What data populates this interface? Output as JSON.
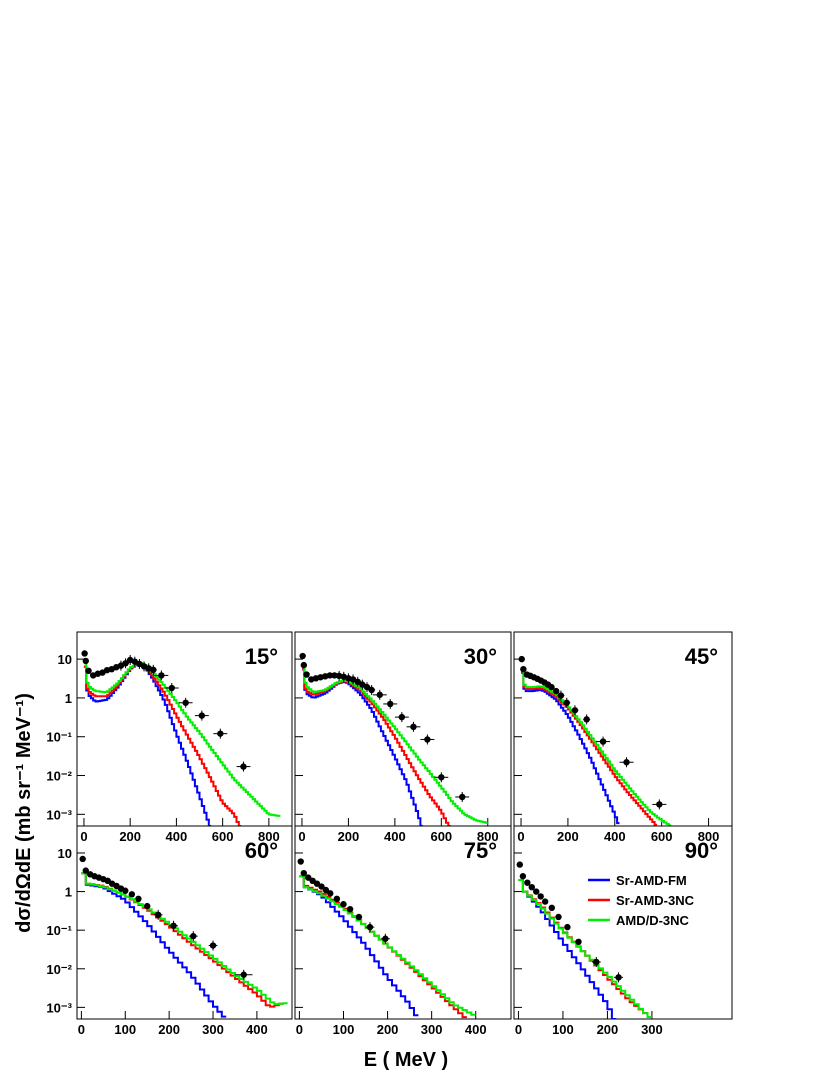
{
  "figure": {
    "ylabel": "dσ/dΩdE (mb sr⁻¹ MeV⁻¹)",
    "xlabel": "E ( MeV )"
  },
  "legend": [
    {
      "name": "Sr-AMD-FM",
      "color": "#0000ff"
    },
    {
      "name": "Sr-AMD-3NC",
      "color": "#ff0000"
    },
    {
      "name": "AMD/D-3NC",
      "color": "#00ee00"
    }
  ],
  "chart_data": [
    {
      "type": "line",
      "title": "15°",
      "xlim": [
        -30,
        900
      ],
      "ylim": [
        0.0005,
        50
      ],
      "yscale": "log",
      "xticks": [
        0,
        200,
        400,
        600,
        800
      ],
      "yticks": [
        "10⁻³",
        "10⁻²",
        "10⁻¹",
        "1",
        "10"
      ],
      "experiment": [
        {
          "x": 3,
          "y": 14
        },
        {
          "x": 8,
          "y": 9
        },
        {
          "x": 20,
          "y": 5
        },
        {
          "x": 40,
          "y": 3.8
        },
        {
          "x": 60,
          "y": 4.2
        },
        {
          "x": 80,
          "y": 4.5
        },
        {
          "x": 100,
          "y": 5.2
        },
        {
          "x": 120,
          "y": 5.5
        },
        {
          "x": 140,
          "y": 6.2
        },
        {
          "x": 160,
          "y": 6.8
        },
        {
          "x": 180,
          "y": 7.8
        },
        {
          "x": 200,
          "y": 9.5
        },
        {
          "x": 220,
          "y": 8.6
        },
        {
          "x": 240,
          "y": 7.5
        },
        {
          "x": 260,
          "y": 6.5
        },
        {
          "x": 280,
          "y": 5.8
        },
        {
          "x": 300,
          "y": 5.3
        },
        {
          "x": 335,
          "y": 3.8
        },
        {
          "x": 380,
          "y": 1.8
        },
        {
          "x": 440,
          "y": 0.75
        },
        {
          "x": 510,
          "y": 0.35
        },
        {
          "x": 590,
          "y": 0.12
        },
        {
          "x": 690,
          "y": 0.017
        }
      ],
      "series": [
        {
          "name": "Sr-AMD-FM",
          "x": [
            0,
            10,
            20,
            50,
            100,
            150,
            200,
            240,
            260,
            300,
            350,
            400,
            450,
            500,
            550
          ],
          "y": [
            20,
            2,
            1.2,
            0.8,
            0.9,
            2,
            5.5,
            8,
            7,
            3,
            0.8,
            0.12,
            0.02,
            0.003,
            0.0004
          ]
        },
        {
          "name": "Sr-AMD-3NC",
          "x": [
            0,
            10,
            20,
            50,
            100,
            150,
            200,
            240,
            260,
            300,
            350,
            400,
            450,
            500,
            550,
            600,
            650,
            680
          ],
          "y": [
            20,
            2,
            1.5,
            1.1,
            1.1,
            2.2,
            5.8,
            8,
            7.2,
            3.5,
            1.3,
            0.35,
            0.1,
            0.03,
            0.008,
            0.002,
            0.001,
            0.0004
          ]
        },
        {
          "name": "AMD/D-3NC",
          "x": [
            0,
            10,
            20,
            50,
            100,
            150,
            200,
            240,
            260,
            300,
            350,
            400,
            450,
            500,
            550,
            600,
            650,
            700,
            750,
            800,
            850
          ],
          "y": [
            20,
            3,
            2,
            1.5,
            1.4,
            2.5,
            6,
            8,
            7.5,
            4.5,
            2,
            0.8,
            0.3,
            0.13,
            0.05,
            0.02,
            0.008,
            0.004,
            0.002,
            0.001,
            0.0009
          ]
        }
      ]
    },
    {
      "type": "line",
      "title": "30°",
      "xlim": [
        -30,
        900
      ],
      "ylim": [
        0.0005,
        50
      ],
      "yscale": "log",
      "xticks": [
        0,
        200,
        400,
        600,
        800
      ],
      "yticks": [],
      "experiment": [
        {
          "x": 3,
          "y": 12
        },
        {
          "x": 8,
          "y": 7
        },
        {
          "x": 20,
          "y": 4
        },
        {
          "x": 40,
          "y": 3
        },
        {
          "x": 60,
          "y": 3.2
        },
        {
          "x": 80,
          "y": 3.4
        },
        {
          "x": 100,
          "y": 3.6
        },
        {
          "x": 120,
          "y": 3.8
        },
        {
          "x": 140,
          "y": 3.8
        },
        {
          "x": 160,
          "y": 3.7
        },
        {
          "x": 180,
          "y": 3.5
        },
        {
          "x": 200,
          "y": 3.2
        },
        {
          "x": 220,
          "y": 3
        },
        {
          "x": 240,
          "y": 2.6
        },
        {
          "x": 260,
          "y": 2.2
        },
        {
          "x": 280,
          "y": 1.9
        },
        {
          "x": 300,
          "y": 1.6
        },
        {
          "x": 335,
          "y": 1.2
        },
        {
          "x": 380,
          "y": 0.7
        },
        {
          "x": 430,
          "y": 0.32
        },
        {
          "x": 480,
          "y": 0.18
        },
        {
          "x": 540,
          "y": 0.085
        },
        {
          "x": 600,
          "y": 0.009
        },
        {
          "x": 690,
          "y": 0.0028
        }
      ],
      "series": [
        {
          "name": "Sr-AMD-FM",
          "x": [
            0,
            10,
            20,
            50,
            100,
            150,
            180,
            200,
            250,
            300,
            350,
            400,
            450,
            500,
            520
          ],
          "y": [
            15,
            2,
            1.3,
            1,
            1.3,
            2.3,
            2.6,
            2.4,
            1.3,
            0.5,
            0.12,
            0.03,
            0.007,
            0.001,
            0.0004
          ]
        },
        {
          "name": "Sr-AMD-3NC",
          "x": [
            0,
            10,
            20,
            50,
            100,
            150,
            180,
            200,
            250,
            300,
            350,
            400,
            450,
            500,
            550,
            600,
            640
          ],
          "y": [
            15,
            2,
            1.5,
            1.2,
            1.5,
            2.4,
            2.7,
            2.6,
            1.6,
            0.75,
            0.3,
            0.1,
            0.03,
            0.009,
            0.003,
            0.0012,
            0.0004
          ]
        },
        {
          "name": "AMD/D-3NC",
          "x": [
            0,
            10,
            20,
            50,
            100,
            150,
            180,
            200,
            250,
            300,
            350,
            400,
            450,
            500,
            550,
            600,
            650,
            700,
            750,
            800
          ],
          "y": [
            15,
            3,
            2,
            1.4,
            1.6,
            2.5,
            2.8,
            2.7,
            1.8,
            0.9,
            0.4,
            0.17,
            0.07,
            0.028,
            0.012,
            0.005,
            0.002,
            0.001,
            0.0007,
            0.0006
          ]
        }
      ]
    },
    {
      "type": "line",
      "title": "45°",
      "xlim": [
        -30,
        900
      ],
      "ylim": [
        0.0005,
        50
      ],
      "yscale": "log",
      "xticks": [
        0,
        200,
        400,
        600,
        800
      ],
      "yticks": [],
      "experiment": [
        {
          "x": 3,
          "y": 10
        },
        {
          "x": 10,
          "y": 5.5
        },
        {
          "x": 25,
          "y": 4
        },
        {
          "x": 40,
          "y": 3.7
        },
        {
          "x": 55,
          "y": 3.4
        },
        {
          "x": 70,
          "y": 3.1
        },
        {
          "x": 85,
          "y": 2.8
        },
        {
          "x": 100,
          "y": 2.5
        },
        {
          "x": 115,
          "y": 2.2
        },
        {
          "x": 130,
          "y": 1.9
        },
        {
          "x": 150,
          "y": 1.5
        },
        {
          "x": 170,
          "y": 1.15
        },
        {
          "x": 195,
          "y": 0.75
        },
        {
          "x": 230,
          "y": 0.48
        },
        {
          "x": 280,
          "y": 0.28
        },
        {
          "x": 350,
          "y": 0.075
        },
        {
          "x": 450,
          "y": 0.022
        },
        {
          "x": 590,
          "y": 0.0018
        }
      ],
      "series": [
        {
          "name": "Sr-AMD-FM",
          "x": [
            0,
            10,
            20,
            50,
            80,
            100,
            150,
            200,
            250,
            300,
            350,
            400,
            420
          ],
          "y": [
            10,
            2,
            1.5,
            1.5,
            1.6,
            1.5,
            0.9,
            0.35,
            0.1,
            0.025,
            0.005,
            0.001,
            0.0005
          ]
        },
        {
          "name": "Sr-AMD-3NC",
          "x": [
            0,
            10,
            20,
            50,
            80,
            100,
            150,
            200,
            250,
            300,
            350,
            400,
            450,
            500,
            550,
            580
          ],
          "y": [
            10,
            2.2,
            1.7,
            1.7,
            1.8,
            1.7,
            1.1,
            0.55,
            0.22,
            0.08,
            0.028,
            0.01,
            0.004,
            0.0018,
            0.0008,
            0.0005
          ]
        },
        {
          "name": "AMD/D-3NC",
          "x": [
            0,
            10,
            20,
            50,
            80,
            100,
            150,
            200,
            250,
            300,
            350,
            400,
            450,
            500,
            550,
            600,
            640
          ],
          "y": [
            10,
            2.5,
            1.9,
            1.9,
            2,
            1.9,
            1.25,
            0.62,
            0.26,
            0.1,
            0.038,
            0.014,
            0.006,
            0.0026,
            0.0012,
            0.0007,
            0.0005
          ]
        }
      ]
    },
    {
      "type": "line",
      "title": "60°",
      "xlim": [
        -10,
        480
      ],
      "ylim": [
        0.0005,
        50
      ],
      "yscale": "log",
      "xticks": [
        0,
        100,
        200,
        300,
        400
      ],
      "yticks": [
        "10⁻³",
        "10⁻²",
        "10⁻¹",
        "1",
        "10"
      ],
      "experiment": [
        {
          "x": 3,
          "y": 7
        },
        {
          "x": 10,
          "y": 3.5
        },
        {
          "x": 20,
          "y": 2.8
        },
        {
          "x": 30,
          "y": 2.5
        },
        {
          "x": 40,
          "y": 2.3
        },
        {
          "x": 50,
          "y": 2.1
        },
        {
          "x": 60,
          "y": 1.9
        },
        {
          "x": 70,
          "y": 1.6
        },
        {
          "x": 80,
          "y": 1.4
        },
        {
          "x": 90,
          "y": 1.2
        },
        {
          "x": 100,
          "y": 1.05
        },
        {
          "x": 115,
          "y": 0.85
        },
        {
          "x": 130,
          "y": 0.65
        },
        {
          "x": 150,
          "y": 0.42
        },
        {
          "x": 175,
          "y": 0.25
        },
        {
          "x": 210,
          "y": 0.13
        },
        {
          "x": 255,
          "y": 0.07
        },
        {
          "x": 300,
          "y": 0.04
        },
        {
          "x": 370,
          "y": 0.007
        }
      ],
      "series": [
        {
          "name": "Sr-AMD-FM",
          "x": [
            0,
            5,
            15,
            50,
            100,
            150,
            200,
            250,
            300,
            330
          ],
          "y": [
            6,
            3,
            1.5,
            1.3,
            0.6,
            0.15,
            0.03,
            0.007,
            0.0012,
            0.0005
          ]
        },
        {
          "name": "Sr-AMD-3NC",
          "x": [
            0,
            5,
            15,
            50,
            100,
            150,
            200,
            250,
            300,
            350,
            400,
            430,
            460
          ],
          "y": [
            6,
            3,
            1.6,
            1.4,
            0.8,
            0.35,
            0.13,
            0.045,
            0.017,
            0.006,
            0.0022,
            0.001,
            0.0013
          ]
        },
        {
          "name": "AMD/D-3NC",
          "x": [
            0,
            5,
            15,
            50,
            100,
            150,
            200,
            250,
            300,
            350,
            400,
            440,
            470
          ],
          "y": [
            6,
            3,
            1.6,
            1.35,
            0.8,
            0.38,
            0.15,
            0.055,
            0.02,
            0.007,
            0.003,
            0.0012,
            0.0013
          ]
        }
      ]
    },
    {
      "type": "line",
      "title": "75°",
      "xlim": [
        -10,
        480
      ],
      "ylim": [
        0.0005,
        50
      ],
      "yscale": "log",
      "xticks": [
        0,
        100,
        200,
        300,
        400
      ],
      "yticks": [],
      "experiment": [
        {
          "x": 3,
          "y": 6
        },
        {
          "x": 10,
          "y": 3
        },
        {
          "x": 20,
          "y": 2.3
        },
        {
          "x": 30,
          "y": 1.9
        },
        {
          "x": 40,
          "y": 1.6
        },
        {
          "x": 50,
          "y": 1.35
        },
        {
          "x": 60,
          "y": 1.1
        },
        {
          "x": 70,
          "y": 0.9
        },
        {
          "x": 85,
          "y": 0.65
        },
        {
          "x": 100,
          "y": 0.47
        },
        {
          "x": 115,
          "y": 0.35
        },
        {
          "x": 135,
          "y": 0.22
        },
        {
          "x": 160,
          "y": 0.12
        },
        {
          "x": 195,
          "y": 0.06
        }
      ],
      "series": [
        {
          "name": "Sr-AMD-FM",
          "x": [
            0,
            5,
            15,
            50,
            100,
            150,
            200,
            250,
            270
          ],
          "y": [
            5,
            2.5,
            1.3,
            0.8,
            0.2,
            0.04,
            0.006,
            0.0012,
            0.0005
          ]
        },
        {
          "name": "Sr-AMD-3NC",
          "x": [
            0,
            5,
            15,
            50,
            100,
            150,
            200,
            250,
            300,
            350,
            380
          ],
          "y": [
            5,
            2.5,
            1.4,
            0.95,
            0.4,
            0.13,
            0.04,
            0.012,
            0.0035,
            0.001,
            0.0005
          ]
        },
        {
          "name": "AMD/D-3NC",
          "x": [
            0,
            5,
            15,
            50,
            100,
            150,
            200,
            250,
            300,
            350,
            400
          ],
          "y": [
            5,
            2.5,
            1.3,
            0.85,
            0.37,
            0.13,
            0.04,
            0.013,
            0.004,
            0.0012,
            0.0006
          ]
        }
      ]
    },
    {
      "type": "line",
      "title": "90°",
      "xlim": [
        -10,
        480
      ],
      "ylim": [
        0.0005,
        50
      ],
      "yscale": "log",
      "xticks": [
        0,
        100,
        200,
        300
      ],
      "yticks": [],
      "experiment": [
        {
          "x": 3,
          "y": 5
        },
        {
          "x": 10,
          "y": 2.5
        },
        {
          "x": 20,
          "y": 1.7
        },
        {
          "x": 30,
          "y": 1.3
        },
        {
          "x": 40,
          "y": 1.0
        },
        {
          "x": 50,
          "y": 0.75
        },
        {
          "x": 60,
          "y": 0.55
        },
        {
          "x": 75,
          "y": 0.38
        },
        {
          "x": 90,
          "y": 0.22
        },
        {
          "x": 110,
          "y": 0.12
        },
        {
          "x": 135,
          "y": 0.05
        },
        {
          "x": 175,
          "y": 0.015
        },
        {
          "x": 225,
          "y": 0.006
        }
      ],
      "series": [
        {
          "name": "Sr-AMD-FM",
          "x": [
            0,
            5,
            15,
            50,
            100,
            150,
            200,
            215
          ],
          "y": [
            4,
            2,
            1,
            0.35,
            0.05,
            0.008,
            0.0012,
            0.0005
          ]
        },
        {
          "name": "Sr-AMD-3NC",
          "x": [
            0,
            5,
            15,
            50,
            100,
            150,
            200,
            250,
            280,
            300
          ],
          "y": [
            4,
            2,
            1,
            0.45,
            0.1,
            0.025,
            0.006,
            0.0015,
            0.0008,
            0.0005
          ]
        },
        {
          "name": "AMD/D-3NC",
          "x": [
            0,
            5,
            15,
            50,
            100,
            150,
            200,
            250,
            280,
            300
          ],
          "y": [
            4,
            2,
            1,
            0.42,
            0.095,
            0.025,
            0.007,
            0.0018,
            0.0008,
            0.0005
          ]
        }
      ]
    }
  ]
}
